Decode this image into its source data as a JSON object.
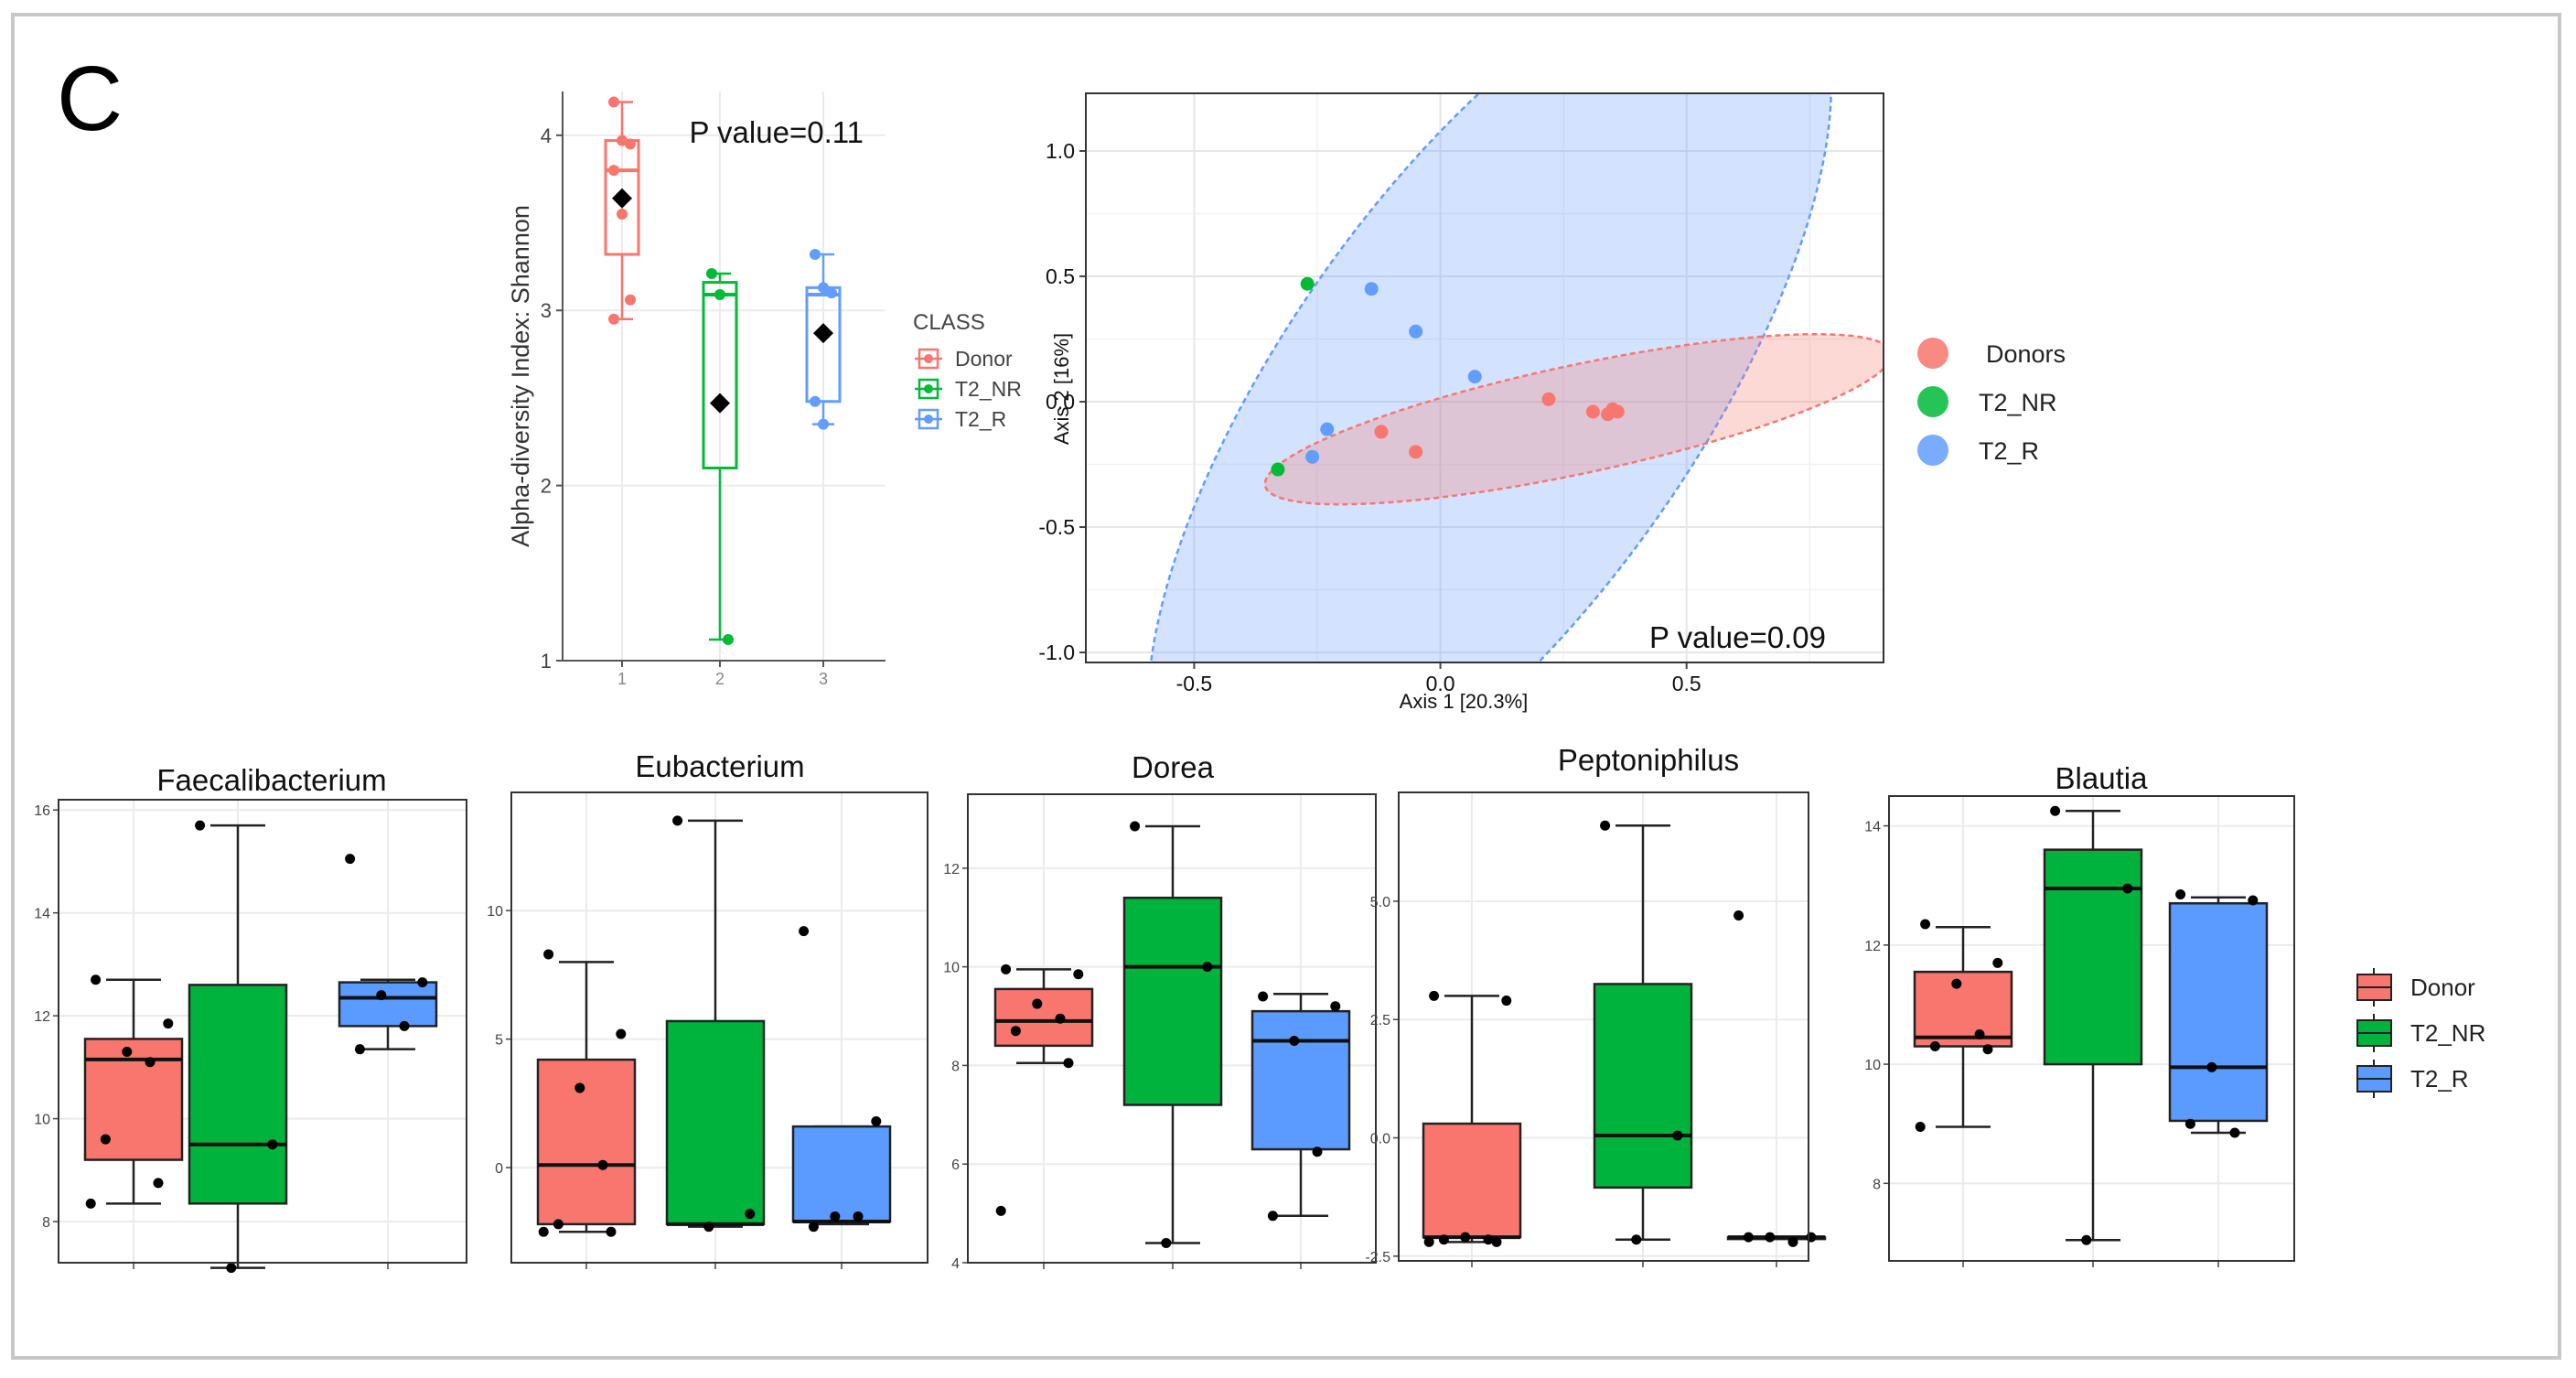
{
  "figure": {
    "panel_letter": "C",
    "colors": {
      "donor": "#f8766d",
      "t2_nr": "#00ba38",
      "t2_r": "#619cff",
      "box_donor": "#f8766d",
      "box_t2_nr": "#00b33c",
      "box_t2_r": "#5b9bff"
    }
  },
  "chart_data": [
    {
      "id": "alpha",
      "type": "box",
      "ylabel": "Alpha-diversity Index: Shannon",
      "annotation": "P value=0.11",
      "ylim": [
        1,
        4.25
      ],
      "yticks": [
        "1",
        "2",
        "3",
        "4"
      ],
      "xticks": [
        "1",
        "2",
        "3"
      ],
      "legend_title": "CLASS",
      "legend": [
        "Donor",
        "T2_NR",
        "T2_R"
      ],
      "groups": [
        {
          "name": "Donor",
          "q1": 3.32,
          "median": 3.8,
          "q3": 3.97,
          "min": 2.95,
          "max": 4.19,
          "mean": 3.64,
          "points": [
            4.19,
            3.97,
            3.95,
            3.8,
            3.55,
            3.06,
            2.95
          ]
        },
        {
          "name": "T2_NR",
          "q1": 2.1,
          "median": 3.09,
          "q3": 3.16,
          "min": 1.12,
          "max": 3.21,
          "mean": 2.47,
          "points": [
            3.21,
            3.09,
            1.12
          ]
        },
        {
          "name": "T2_R",
          "q1": 2.48,
          "median": 3.09,
          "q3": 3.13,
          "min": 2.35,
          "max": 3.32,
          "mean": 2.87,
          "points": [
            3.32,
            3.13,
            3.1,
            2.48,
            2.35
          ]
        }
      ]
    },
    {
      "id": "pcoa",
      "type": "scatter",
      "xlabel": "Axis 1 [20.3%]",
      "ylabel": "Axis 2 [16%]",
      "annotation": "P value=0.09",
      "xlim": [
        -0.72,
        0.9
      ],
      "ylim": [
        -1.04,
        1.23
      ],
      "xticks": [
        -0.5,
        0.0,
        0.5
      ],
      "xtick_labels": [
        "-0.5",
        "0.0",
        "0.5"
      ],
      "yticks": [
        1.0,
        0.5,
        0.0,
        -0.5,
        -1.0
      ],
      "ytick_labels": [
        "1.0",
        "0.5",
        "0.0",
        "-0.5",
        "-1.0"
      ],
      "legend": [
        "Donors",
        "T2_NR",
        "T2_R"
      ],
      "series": [
        {
          "name": "Donors",
          "points": [
            [
              0.22,
              0.01
            ],
            [
              0.31,
              -0.04
            ],
            [
              0.34,
              -0.05
            ],
            [
              0.36,
              -0.04
            ],
            [
              -0.12,
              -0.12
            ],
            [
              -0.05,
              -0.2
            ],
            [
              0.35,
              -0.03
            ]
          ]
        },
        {
          "name": "T2_NR",
          "points": [
            [
              -0.27,
              0.47
            ],
            [
              -0.33,
              -0.27
            ]
          ]
        },
        {
          "name": "T2_R",
          "points": [
            [
              -0.14,
              0.45
            ],
            [
              -0.05,
              0.28
            ],
            [
              0.07,
              0.1
            ],
            [
              -0.23,
              -0.11
            ],
            [
              -0.26,
              -0.22
            ]
          ]
        }
      ],
      "ellipses": [
        {
          "name": "T2_R",
          "cx": 0.1,
          "cy": 0.02,
          "rx": 1.05,
          "ry": 0.42,
          "angle_deg": 55
        },
        {
          "name": "Donors",
          "cx": 0.28,
          "cy": -0.07,
          "rx": 0.65,
          "ry": 0.11,
          "angle_deg": 12
        }
      ]
    },
    {
      "id": "faecali",
      "type": "box",
      "title": "Faecalibacterium",
      "ylim": [
        7.2,
        16.2
      ],
      "yticks": [
        "8",
        "10",
        "12",
        "14",
        "16"
      ],
      "groups": [
        {
          "name": "Donor",
          "q1": 9.2,
          "median": 11.15,
          "q3": 11.55,
          "min": 8.35,
          "max": 12.7,
          "points": [
            12.7,
            11.85,
            11.3,
            11.1,
            9.6,
            8.75,
            8.35
          ]
        },
        {
          "name": "T2_NR",
          "q1": 8.35,
          "median": 9.5,
          "q3": 12.6,
          "min": 7.1,
          "max": 15.7,
          "points": [
            15.7,
            9.5,
            7.1
          ]
        },
        {
          "name": "T2_R",
          "q1": 11.8,
          "median": 12.35,
          "q3": 12.65,
          "min": 11.35,
          "max": 12.7,
          "points": [
            15.05,
            12.65,
            12.4,
            11.8,
            11.35
          ]
        }
      ]
    },
    {
      "id": "eubact",
      "type": "box",
      "title": "Eubacterium",
      "ylim": [
        -3.7,
        14.6
      ],
      "yticks": [
        "0",
        "5",
        "10"
      ],
      "groups": [
        {
          "name": "Donor",
          "q1": -2.2,
          "median": 0.1,
          "q3": 4.2,
          "min": -2.5,
          "max": 8.0,
          "points": [
            8.3,
            5.2,
            3.1,
            0.1,
            -2.2,
            -2.5,
            -2.5
          ]
        },
        {
          "name": "T2_NR",
          "q1": -2.2,
          "median": -2.2,
          "q3": 5.7,
          "min": -2.3,
          "max": 13.5,
          "points": [
            13.5,
            -1.8,
            -2.3
          ]
        },
        {
          "name": "T2_R",
          "q1": -2.1,
          "median": -2.1,
          "q3": 1.6,
          "min": -2.2,
          "max": 1.6,
          "points": [
            9.2,
            1.8,
            -1.9,
            -1.9,
            -2.3
          ]
        }
      ]
    },
    {
      "id": "dorea",
      "type": "box",
      "title": "Dorea",
      "ylim": [
        4.0,
        13.5
      ],
      "yticks": [
        "4",
        "6",
        "8",
        "10",
        "12"
      ],
      "groups": [
        {
          "name": "Donor",
          "q1": 8.4,
          "median": 8.9,
          "q3": 9.55,
          "min": 8.05,
          "max": 9.95,
          "points": [
            9.95,
            9.85,
            9.25,
            8.95,
            8.7,
            8.05,
            5.05
          ]
        },
        {
          "name": "T2_NR",
          "q1": 7.2,
          "median": 10.0,
          "q3": 11.4,
          "min": 4.4,
          "max": 12.85,
          "points": [
            12.85,
            10.0,
            4.4
          ]
        },
        {
          "name": "T2_R",
          "q1": 6.3,
          "median": 8.5,
          "q3": 9.1,
          "min": 4.95,
          "max": 9.45,
          "points": [
            9.4,
            9.2,
            8.5,
            6.25,
            4.95
          ]
        }
      ]
    },
    {
      "id": "pepto",
      "type": "box",
      "title": "Peptoniphilus",
      "ylim": [
        -2.6,
        7.3
      ],
      "yticks": [
        "-2.5",
        "0.0",
        "2.5",
        "5.0"
      ],
      "groups": [
        {
          "name": "Donor",
          "q1": -2.1,
          "median": -2.1,
          "q3": 0.3,
          "min": -2.2,
          "max": 3.0,
          "points": [
            3.0,
            2.9,
            -2.1,
            -2.15,
            -2.15,
            -2.2,
            -2.2
          ]
        },
        {
          "name": "T2_NR",
          "q1": -1.05,
          "median": 0.05,
          "q3": 3.25,
          "min": -2.15,
          "max": 6.6,
          "points": [
            6.6,
            0.05,
            -2.15
          ]
        },
        {
          "name": "T2_R",
          "q1": -2.1,
          "median": -2.1,
          "q3": -2.1,
          "min": -2.1,
          "max": -2.1,
          "points": [
            4.7,
            -2.1,
            -2.1,
            -2.2,
            -2.1
          ]
        }
      ]
    },
    {
      "id": "blautia",
      "type": "box",
      "title": "Blautia",
      "ylim": [
        6.7,
        14.5
      ],
      "yticks": [
        "8",
        "10",
        "12",
        "14"
      ],
      "legend": [
        "Donor",
        "T2_NR",
        "T2_R"
      ],
      "groups": [
        {
          "name": "Donor",
          "q1": 10.3,
          "median": 10.45,
          "q3": 11.55,
          "min": 8.95,
          "max": 12.3,
          "points": [
            12.35,
            11.7,
            11.35,
            10.5,
            10.3,
            10.25,
            8.95
          ]
        },
        {
          "name": "T2_NR",
          "q1": 10.0,
          "median": 12.95,
          "q3": 13.6,
          "min": 7.05,
          "max": 14.25,
          "points": [
            14.25,
            12.95,
            7.05
          ]
        },
        {
          "name": "T2_R",
          "q1": 9.05,
          "median": 9.95,
          "q3": 12.7,
          "min": 8.85,
          "max": 12.8,
          "points": [
            12.85,
            12.75,
            9.95,
            8.85,
            9.0
          ]
        }
      ]
    }
  ]
}
